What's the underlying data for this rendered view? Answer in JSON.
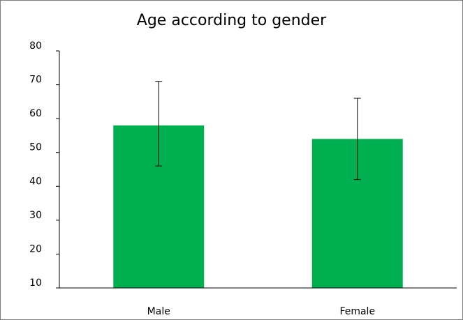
{
  "chart_data": {
    "type": "bar",
    "title": "Age according to gender",
    "xlabel": "",
    "ylabel": "",
    "categories": [
      "Male",
      "Female"
    ],
    "series": [
      {
        "values": [
          58,
          54
        ],
        "error_low": [
          46,
          42
        ],
        "error_high": [
          71,
          66
        ]
      }
    ],
    "ylim": [
      10,
      80
    ],
    "yticks": [
      "80",
      "70",
      "60",
      "50",
      "40",
      "30",
      "20",
      "10"
    ],
    "grid": false,
    "legend": "none",
    "bar_color": "#00B050",
    "axis_color": "#000000"
  }
}
